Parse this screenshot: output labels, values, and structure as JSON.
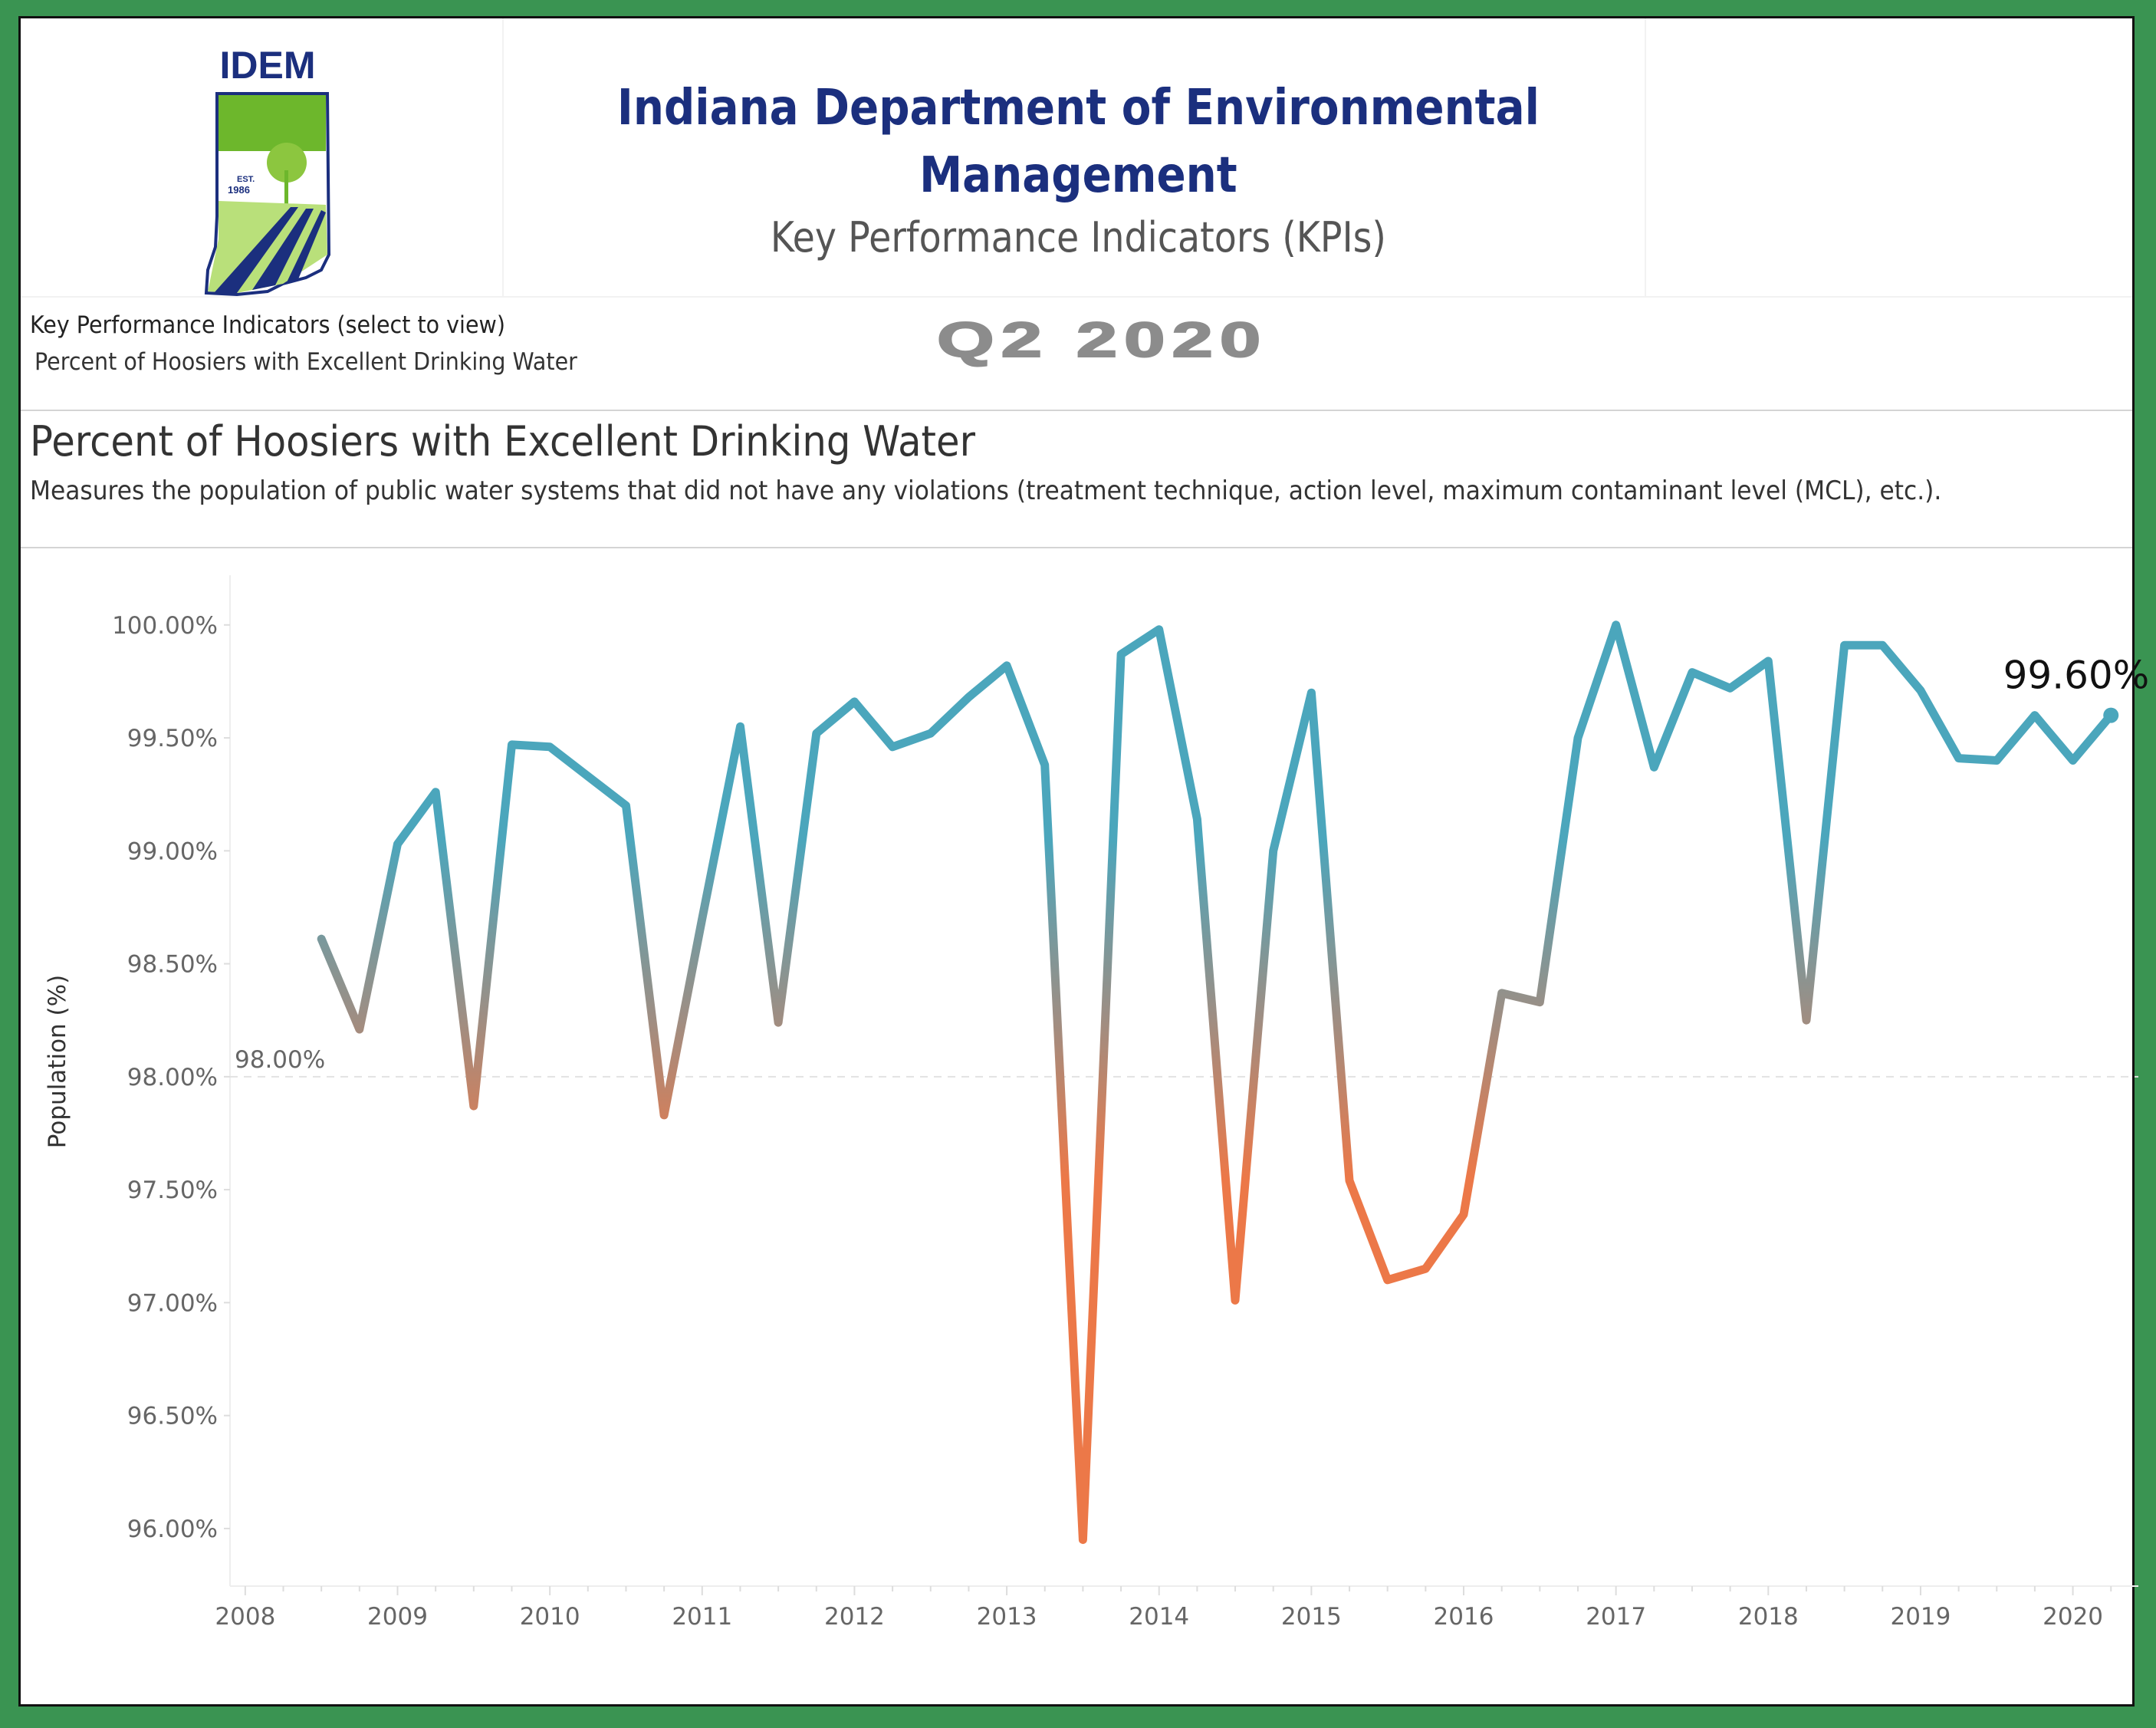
{
  "header": {
    "logo_text": "IDEM",
    "logo_est": "EST. 1986",
    "title_line1": "Indiana Department of Environmental",
    "title_line2": "Management",
    "subtitle": "Key Performance Indicators (KPIs)",
    "quarter": "Q2 2020"
  },
  "selector": {
    "label": "Key Performance Indicators (select to view)",
    "value": "Percent of Hoosiers with Excellent Drinking Water"
  },
  "chart_section": {
    "title": "Percent of Hoosiers with Excellent Drinking Water",
    "description": "Measures the population of public water systems that did not have any violations (treatment technique, action level, maximum contaminant level (MCL), etc.)."
  },
  "colors": {
    "high": "#4ba6bc",
    "mid": "#9a8f86",
    "low": "#ec7848",
    "brand_blue": "#1b2f7e",
    "frame_green": "#3a9452"
  },
  "chart_data": {
    "type": "line",
    "title": "Percent of Hoosiers with Excellent Drinking Water",
    "xlabel": "",
    "ylabel": "Population (%)",
    "ylim": [
      95.745,
      100.22
    ],
    "xlim": [
      2007.9,
      2020.43
    ],
    "x_ticks": [
      "2008",
      "2009",
      "2010",
      "2011",
      "2012",
      "2013",
      "2014",
      "2015",
      "2016",
      "2017",
      "2018",
      "2019",
      "2020"
    ],
    "y_ticks": [
      "96.00%",
      "96.50%",
      "97.00%",
      "97.50%",
      "98.00%",
      "98.50%",
      "99.00%",
      "99.50%",
      "100.00%"
    ],
    "reference_line": {
      "value": 98.0,
      "label": "98.00%"
    },
    "last_value_label": "99.60%",
    "grid": false,
    "x": [
      2008.5,
      2008.75,
      2009.0,
      2009.25,
      2009.5,
      2009.75,
      2010.0,
      2010.25,
      2010.5,
      2010.75,
      2011.0,
      2011.25,
      2011.5,
      2011.75,
      2012.0,
      2012.25,
      2012.5,
      2012.75,
      2013.0,
      2013.25,
      2013.5,
      2013.75,
      2014.0,
      2014.25,
      2014.5,
      2014.75,
      2015.0,
      2015.25,
      2015.5,
      2015.75,
      2016.0,
      2016.25,
      2016.5,
      2016.75,
      2017.0,
      2017.25,
      2017.5,
      2017.75,
      2018.0,
      2018.25,
      2018.5,
      2018.75,
      2019.0,
      2019.25,
      2019.5,
      2019.75,
      2020.0,
      2020.25
    ],
    "series": [
      {
        "name": "Population (%)",
        "values": [
          98.61,
          98.21,
          99.03,
          99.26,
          97.87,
          99.47,
          99.46,
          99.33,
          99.2,
          97.83,
          98.7,
          99.55,
          98.24,
          99.52,
          99.66,
          99.46,
          99.52,
          99.68,
          99.82,
          99.38,
          95.95,
          99.87,
          99.98,
          99.14,
          97.01,
          99.0,
          99.7,
          97.54,
          97.1,
          97.15,
          97.39,
          98.37,
          98.33,
          99.5,
          100.0,
          99.37,
          99.79,
          99.72,
          99.84,
          98.25,
          99.91,
          99.91,
          99.71,
          99.41,
          99.4,
          99.6,
          99.4,
          99.6
        ]
      }
    ]
  }
}
